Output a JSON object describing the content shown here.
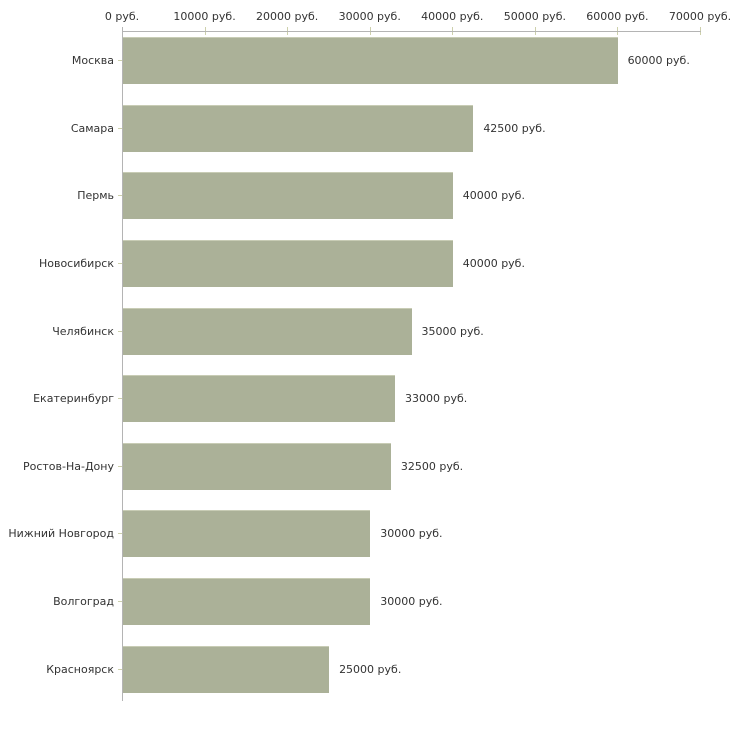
{
  "chart_data": {
    "type": "bar",
    "orientation": "horizontal",
    "categories": [
      "Москва",
      "Самара",
      "Пермь",
      "Новосибирск",
      "Челябинск",
      "Екатеринбург",
      "Ростов-На-Дону",
      "Нижний Новгород",
      "Волгоград",
      "Красноярск"
    ],
    "values": [
      60000,
      42500,
      40000,
      40000,
      35000,
      33000,
      32500,
      30000,
      30000,
      25000
    ],
    "value_labels": [
      "60000 руб.",
      "42500 руб.",
      "40000 руб.",
      "40000 руб.",
      "35000 руб.",
      "33000 руб.",
      "32500 руб.",
      "30000 руб.",
      "30000 руб.",
      "25000 руб."
    ],
    "x_axis": {
      "min": 0,
      "max": 70000,
      "tick_step": 10000,
      "tick_values": [
        0,
        10000,
        20000,
        30000,
        40000,
        50000,
        60000,
        70000
      ],
      "tick_labels": [
        "0 руб.",
        "10000 руб.",
        "20000 руб.",
        "30000 руб.",
        "40000 руб.",
        "50000 руб.",
        "60000 руб.",
        "70000 руб."
      ]
    },
    "grid": false,
    "legend": false,
    "axis_label_position": "top",
    "colors": {
      "bar_fill": "#abb198",
      "bar_edge": "#c8ccb5",
      "axis_line": "#b4b4b4",
      "tick_mark": "#cdd0ac",
      "text": "#333333",
      "background": "#ffffff"
    }
  }
}
